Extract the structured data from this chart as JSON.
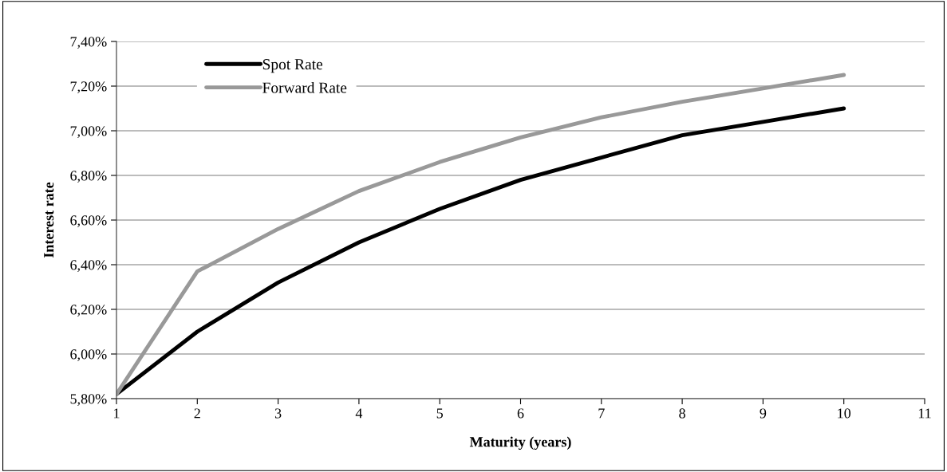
{
  "chart_data": {
    "type": "line",
    "xlabel": "Maturity (years)",
    "ylabel": "Interest rate",
    "x": [
      1,
      2,
      3,
      4,
      5,
      6,
      7,
      8,
      9,
      10
    ],
    "series": [
      {
        "name": "Spot Rate",
        "color": "#000000",
        "values": [
          5.82,
          6.1,
          6.32,
          6.5,
          6.65,
          6.78,
          6.88,
          6.98,
          7.04,
          7.1
        ]
      },
      {
        "name": "Forward Rate",
        "color": "#999999",
        "values": [
          5.82,
          6.37,
          6.56,
          6.73,
          6.86,
          6.97,
          7.06,
          7.13,
          7.19,
          7.25
        ]
      }
    ],
    "xlim": [
      1,
      11
    ],
    "xticks": [
      1,
      2,
      3,
      4,
      5,
      6,
      7,
      8,
      9,
      10,
      11
    ],
    "ylim": [
      5.8,
      7.4
    ],
    "yticks": [
      {
        "value": 5.8,
        "label": "5,80%"
      },
      {
        "value": 6.0,
        "label": "6,00%"
      },
      {
        "value": 6.2,
        "label": "6,20%"
      },
      {
        "value": 6.4,
        "label": "6,40%"
      },
      {
        "value": 6.6,
        "label": "6,60%"
      },
      {
        "value": 6.8,
        "label": "6,80%"
      },
      {
        "value": 7.0,
        "label": "7,00%"
      },
      {
        "value": 7.2,
        "label": "7,20%"
      },
      {
        "value": 7.4,
        "label": "7,40%"
      }
    ],
    "grid": "y",
    "legend": "top left",
    "line_style": "solid",
    "marker": "none"
  }
}
